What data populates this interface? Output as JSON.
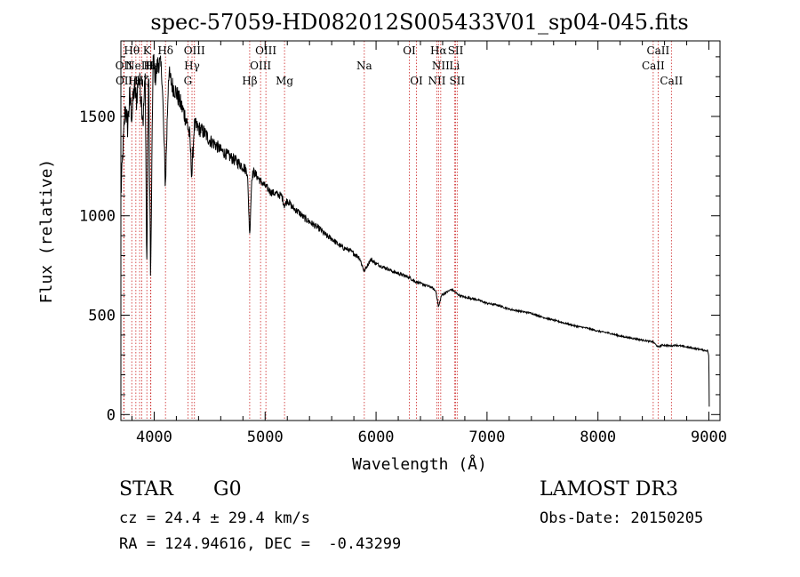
{
  "chart_data": {
    "type": "line",
    "title": "spec-57059-HD082012S005433V01_sp04-045.fits",
    "xlabel": "Wavelength (Å)",
    "ylabel": "Flux (relative)",
    "xlim": [
      3700,
      9100
    ],
    "ylim": [
      -30,
      1880
    ],
    "xticks": [
      4000,
      5000,
      6000,
      7000,
      8000,
      9000
    ],
    "yticks": [
      0,
      500,
      1000,
      1500
    ],
    "series": [
      {
        "name": "flux",
        "x": [
          3700,
          3720,
          3740,
          3760,
          3780,
          3800,
          3820,
          3840,
          3860,
          3880,
          3900,
          3920,
          3933,
          3950,
          3968,
          3990,
          4010,
          4040,
          4070,
          4101,
          4130,
          4160,
          4200,
          4240,
          4280,
          4300,
          4320,
          4340,
          4360,
          4400,
          4450,
          4500,
          4550,
          4600,
          4650,
          4700,
          4750,
          4800,
          4840,
          4861,
          4880,
          4900,
          4950,
          5000,
          5050,
          5100,
          5150,
          5175,
          5200,
          5250,
          5300,
          5350,
          5400,
          5450,
          5500,
          5550,
          5600,
          5650,
          5700,
          5750,
          5800,
          5850,
          5893,
          5950,
          6000,
          6050,
          6100,
          6150,
          6200,
          6250,
          6300,
          6350,
          6400,
          6450,
          6500,
          6540,
          6563,
          6590,
          6620,
          6680,
          6750,
          6800,
          6900,
          7000,
          7100,
          7200,
          7300,
          7400,
          7500,
          7600,
          7700,
          7800,
          7900,
          8000,
          8100,
          8200,
          8300,
          8400,
          8498,
          8542,
          8580,
          8662,
          8700,
          8800,
          8900,
          8990,
          9000,
          9003
        ],
        "y": [
          1100,
          1350,
          1550,
          1450,
          1600,
          1500,
          1650,
          1580,
          1700,
          1620,
          1480,
          1700,
          700,
          1750,
          650,
          1800,
          1700,
          1780,
          1720,
          1150,
          1720,
          1660,
          1620,
          1560,
          1500,
          1460,
          1400,
          1200,
          1450,
          1440,
          1420,
          1380,
          1360,
          1330,
          1310,
          1290,
          1270,
          1250,
          1220,
          900,
          1200,
          1220,
          1180,
          1150,
          1120,
          1110,
          1100,
          1050,
          1080,
          1040,
          1020,
          990,
          970,
          950,
          930,
          900,
          885,
          860,
          840,
          830,
          810,
          790,
          720,
          780,
          760,
          745,
          735,
          720,
          710,
          700,
          690,
          670,
          660,
          650,
          640,
          620,
          540,
          600,
          610,
          630,
          600,
          590,
          580,
          560,
          550,
          530,
          520,
          510,
          490,
          475,
          460,
          445,
          435,
          420,
          410,
          395,
          385,
          375,
          365,
          340,
          350,
          345,
          350,
          340,
          330,
          320,
          290,
          40
        ],
        "noise_amplitude": [
          50,
          60,
          70,
          70,
          70,
          70,
          70,
          70,
          70,
          70,
          70,
          70,
          60,
          70,
          60,
          70,
          60,
          60,
          60,
          50,
          50,
          50,
          50,
          50,
          50,
          50,
          50,
          50,
          50,
          40,
          40,
          35,
          35,
          30,
          30,
          30,
          30,
          30,
          25,
          20,
          25,
          25,
          20,
          20,
          20,
          20,
          20,
          20,
          20,
          18,
          18,
          18,
          18,
          16,
          16,
          16,
          14,
          14,
          14,
          12,
          12,
          12,
          10,
          10,
          10,
          8,
          8,
          8,
          8,
          8,
          8,
          8,
          6,
          6,
          6,
          6,
          6,
          6,
          6,
          5,
          5,
          5,
          5,
          5,
          5,
          4,
          4,
          4,
          4,
          4,
          4,
          4,
          4,
          4,
          4,
          4,
          4,
          4,
          4,
          4,
          4,
          4,
          4,
          4,
          4,
          4,
          0,
          0
        ]
      }
    ],
    "lines": [
      {
        "wave": 3726,
        "label": "OII",
        "row": 2
      },
      {
        "wave": 3729,
        "label": "OII",
        "row": 3
      },
      {
        "wave": 3798,
        "label": "Hθ",
        "row": 1
      },
      {
        "wave": 3835,
        "label": "Hη",
        "row": 3
      },
      {
        "wave": 3869,
        "label": "NeIII",
        "row": 2
      },
      {
        "wave": 3889,
        "label": "Hζ",
        "row": 3
      },
      {
        "wave": 3934,
        "label": "K",
        "row": 1
      },
      {
        "wave": 3968,
        "label": "H",
        "row": 2
      },
      {
        "wave": 3970,
        "label": "Hε",
        "row": 2
      },
      {
        "wave": 4102,
        "label": "Hδ",
        "row": 1
      },
      {
        "wave": 4304,
        "label": "G",
        "row": 3
      },
      {
        "wave": 4341,
        "label": "Hγ",
        "row": 2
      },
      {
        "wave": 4363,
        "label": "OIII",
        "row": 1
      },
      {
        "wave": 4861,
        "label": "Hβ",
        "row": 3
      },
      {
        "wave": 4959,
        "label": "OIII",
        "row": 2
      },
      {
        "wave": 5007,
        "label": "OIII",
        "row": 1
      },
      {
        "wave": 5175,
        "label": "Mg",
        "row": 3
      },
      {
        "wave": 5894,
        "label": "Na",
        "row": 2
      },
      {
        "wave": 6300,
        "label": "OI",
        "row": 1
      },
      {
        "wave": 6364,
        "label": "OI",
        "row": 3
      },
      {
        "wave": 6548,
        "label": "NII",
        "row": 3
      },
      {
        "wave": 6563,
        "label": "Hα",
        "row": 1
      },
      {
        "wave": 6583,
        "label": "NII",
        "row": 2
      },
      {
        "wave": 6707,
        "label": "Li",
        "row": 2
      },
      {
        "wave": 6717,
        "label": "SII",
        "row": 1
      },
      {
        "wave": 6731,
        "label": "SII",
        "row": 3
      },
      {
        "wave": 8498,
        "label": "CaII",
        "row": 2
      },
      {
        "wave": 8542,
        "label": "CaII",
        "row": 1
      },
      {
        "wave": 8662,
        "label": "CaII",
        "row": 3
      }
    ]
  },
  "info": {
    "class": "STAR",
    "subclass": "G0",
    "survey": "LAMOST DR3",
    "cz": "cz = 24.4 ± 29.4 km/s",
    "obs_date": "Obs-Date: 20150205",
    "radec": "RA = 124.94616, DEC =  -0.43299"
  }
}
